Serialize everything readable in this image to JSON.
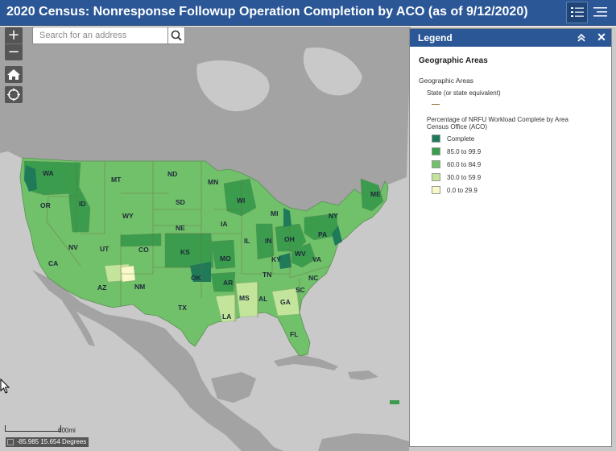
{
  "header": {
    "title": "2020 Census: Nonresponse Followup Operation Completion by ACO (as of 9/12/2020)",
    "legend_button_icon": "legend-list-icon",
    "layers_button_icon": "layers-menu-icon"
  },
  "colors": {
    "header_bg": "#2b5797",
    "complete": "#1f7a5a",
    "bin_85_99": "#3a9c4c",
    "bin_60_84": "#71c06a",
    "bin_30_59": "#c3e59b",
    "bin_0_29": "#f8f9c9",
    "land_other": "#a3a3a3",
    "water": "#c9c9c9"
  },
  "map_controls": {
    "zoom_in": "+",
    "zoom_out": "−",
    "home_icon": "home-icon",
    "locate_icon": "locate-icon"
  },
  "search": {
    "placeholder": "Search for an address",
    "button_icon": "search-icon"
  },
  "legend": {
    "title": "Legend",
    "group_title": "Geographic Areas",
    "layer_title": "Geographic Areas",
    "state_layer": "State (or state equivalent)",
    "pct_layer_line1": "Percentage of NRFU Workload Complete by Area",
    "pct_layer_line2": "Census Office (ACO)",
    "classes": [
      {
        "label": "Complete",
        "color": "#1f7a5a"
      },
      {
        "label": "85.0 to 99.9",
        "color": "#3a9c4c"
      },
      {
        "label": "60.0 to 84.9",
        "color": "#71c06a"
      },
      {
        "label": "30.0 to 59.9",
        "color": "#c3e59b"
      },
      {
        "label": "0.0 to 29.9",
        "color": "#f8f9c9"
      }
    ]
  },
  "states": [
    {
      "abbr": "WA",
      "cls": "bin_85_99"
    },
    {
      "abbr": "OR",
      "cls": "bin_60_84"
    },
    {
      "abbr": "CA",
      "cls": "bin_60_84"
    },
    {
      "abbr": "ID",
      "cls": "bin_85_99"
    },
    {
      "abbr": "NV",
      "cls": "bin_60_84"
    },
    {
      "abbr": "MT",
      "cls": "bin_60_84"
    },
    {
      "abbr": "WY",
      "cls": "bin_60_84"
    },
    {
      "abbr": "UT",
      "cls": "bin_60_84"
    },
    {
      "abbr": "CO",
      "cls": "bin_60_84"
    },
    {
      "abbr": "AZ",
      "cls": "bin_60_84"
    },
    {
      "abbr": "NM",
      "cls": "bin_60_84"
    },
    {
      "abbr": "ND",
      "cls": "bin_60_84"
    },
    {
      "abbr": "SD",
      "cls": "bin_60_84"
    },
    {
      "abbr": "NE",
      "cls": "bin_60_84"
    },
    {
      "abbr": "KS",
      "cls": "bin_85_99"
    },
    {
      "abbr": "OK",
      "cls": "bin_60_84"
    },
    {
      "abbr": "TX",
      "cls": "bin_60_84"
    },
    {
      "abbr": "MN",
      "cls": "bin_60_84"
    },
    {
      "abbr": "IA",
      "cls": "bin_60_84"
    },
    {
      "abbr": "MO",
      "cls": "bin_60_84"
    },
    {
      "abbr": "AR",
      "cls": "bin_60_84"
    },
    {
      "abbr": "LA",
      "cls": "bin_30_59"
    },
    {
      "abbr": "WI",
      "cls": "bin_85_99"
    },
    {
      "abbr": "IL",
      "cls": "bin_60_84"
    },
    {
      "abbr": "MI",
      "cls": "bin_60_84"
    },
    {
      "abbr": "IN",
      "cls": "bin_85_99"
    },
    {
      "abbr": "OH",
      "cls": "bin_85_99"
    },
    {
      "abbr": "KY",
      "cls": "bin_60_84"
    },
    {
      "abbr": "TN",
      "cls": "bin_60_84"
    },
    {
      "abbr": "MS",
      "cls": "bin_30_59"
    },
    {
      "abbr": "AL",
      "cls": "bin_60_84"
    },
    {
      "abbr": "GA",
      "cls": "bin_30_59"
    },
    {
      "abbr": "FL",
      "cls": "bin_60_84"
    },
    {
      "abbr": "SC",
      "cls": "bin_60_84"
    },
    {
      "abbr": "NC",
      "cls": "bin_60_84"
    },
    {
      "abbr": "VA",
      "cls": "bin_60_84"
    },
    {
      "abbr": "WV",
      "cls": "bin_85_99"
    },
    {
      "abbr": "PA",
      "cls": "bin_85_99"
    },
    {
      "abbr": "NY",
      "cls": "bin_60_84"
    },
    {
      "abbr": "ME",
      "cls": "bin_85_99"
    }
  ],
  "scalebar": {
    "label": "600mi"
  },
  "coordinates": {
    "text": "-85.985 15.654 Degrees"
  }
}
